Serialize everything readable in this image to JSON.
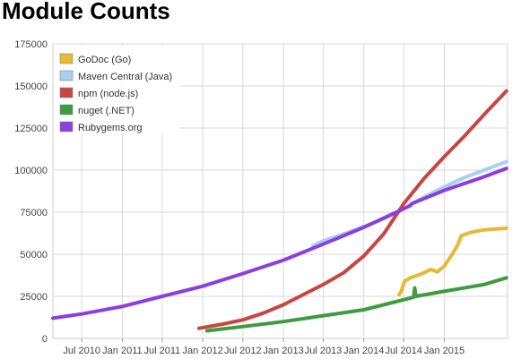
{
  "title": "Module Counts",
  "chart_data": {
    "type": "line",
    "title": "Module Counts",
    "xlabel": "",
    "ylabel": "",
    "x_axis_type": "date",
    "x_range": [
      "2010-02-20",
      "2015-10-15"
    ],
    "ylim": [
      0,
      175000
    ],
    "grid": true,
    "legend_position": "top-left",
    "y_ticks": [
      0,
      25000,
      50000,
      75000,
      100000,
      125000,
      150000,
      175000
    ],
    "y_tick_labels": [
      "0",
      "25000",
      "50000",
      "75000",
      "100000",
      "125000",
      "150000",
      "175000"
    ],
    "x_ticks": [
      "2010-07-01",
      "2011-01-01",
      "2011-07-01",
      "2012-01-01",
      "2012-07-01",
      "2013-01-01",
      "2013-07-01",
      "2014-01-01",
      "2014-07-01",
      "2015-01-01"
    ],
    "x_tick_labels": [
      "Jul 2010",
      "Jan 2011",
      "Jul 2011",
      "Jan 2012",
      "Jul 2012",
      "Jan 2013",
      "Jul 2013",
      "Jan 2014",
      "Jul 2014",
      "Jan 2015"
    ],
    "series": [
      {
        "name": "GoDoc (Go)",
        "color": "#e8b932",
        "points": [
          [
            "2014-06-10",
            26000
          ],
          [
            "2014-06-20",
            28000
          ],
          [
            "2014-07-05",
            34000
          ],
          [
            "2014-08-01",
            36000
          ],
          [
            "2014-09-01",
            37500
          ],
          [
            "2014-10-01",
            39000
          ],
          [
            "2014-11-01",
            41000
          ],
          [
            "2014-12-01",
            39500
          ],
          [
            "2015-01-01",
            43000
          ],
          [
            "2015-02-01",
            49000
          ],
          [
            "2015-03-01",
            55000
          ],
          [
            "2015-03-20",
            61000
          ],
          [
            "2015-05-01",
            63000
          ],
          [
            "2015-07-01",
            64500
          ],
          [
            "2015-10-10",
            65500
          ]
        ]
      },
      {
        "name": "Maven Central (Java)",
        "color": "#a8d0ee",
        "points": [
          [
            "2013-05-15",
            55000
          ],
          [
            "2013-07-01",
            58000
          ],
          [
            "2013-10-01",
            62000
          ],
          [
            "2014-01-01",
            66500
          ],
          [
            "2014-04-01",
            71000
          ],
          [
            "2014-07-01",
            77000
          ],
          [
            "2014-10-01",
            84000
          ],
          [
            "2015-01-01",
            90000
          ],
          [
            "2015-04-01",
            95500
          ],
          [
            "2015-07-01",
            100000
          ],
          [
            "2015-10-10",
            105000
          ]
        ]
      },
      {
        "name": "npm (node.js)",
        "color": "#c84542",
        "points": [
          [
            "2011-12-15",
            6000
          ],
          [
            "2012-04-01",
            8500
          ],
          [
            "2012-07-01",
            11000
          ],
          [
            "2012-10-01",
            15000
          ],
          [
            "2013-01-01",
            20000
          ],
          [
            "2013-04-01",
            26000
          ],
          [
            "2013-07-01",
            32000
          ],
          [
            "2013-10-01",
            39000
          ],
          [
            "2014-01-01",
            49000
          ],
          [
            "2014-04-01",
            62000
          ],
          [
            "2014-07-01",
            80000
          ],
          [
            "2014-10-01",
            95000
          ],
          [
            "2015-01-01",
            108000
          ],
          [
            "2015-04-01",
            120000
          ],
          [
            "2015-07-01",
            133000
          ],
          [
            "2015-10-10",
            147000
          ]
        ]
      },
      {
        "name": "nuget (.NET)",
        "color": "#3f9b3f",
        "points": [
          [
            "2012-01-20",
            4500
          ],
          [
            "2012-07-01",
            7000
          ],
          [
            "2013-01-01",
            10000
          ],
          [
            "2013-07-01",
            13500
          ],
          [
            "2014-01-01",
            17000
          ],
          [
            "2014-07-01",
            23000
          ],
          [
            "2014-08-15",
            24500
          ],
          [
            "2014-08-20",
            30000
          ],
          [
            "2014-08-25",
            25000
          ],
          [
            "2015-01-01",
            28000
          ],
          [
            "2015-07-01",
            32000
          ],
          [
            "2015-10-10",
            36000
          ]
        ]
      },
      {
        "name": "Rubygems.org",
        "color": "#8a3fe0",
        "points": [
          [
            "2010-02-20",
            12000
          ],
          [
            "2010-07-01",
            14500
          ],
          [
            "2011-01-01",
            19000
          ],
          [
            "2011-07-01",
            25000
          ],
          [
            "2012-01-01",
            31000
          ],
          [
            "2012-07-01",
            38500
          ],
          [
            "2013-01-01",
            46500
          ],
          [
            "2013-07-01",
            56000
          ],
          [
            "2014-01-01",
            66000
          ],
          [
            "2014-07-01",
            77000
          ],
          [
            "2014-08-01",
            79000
          ],
          [
            "2014-08-05",
            80000
          ],
          [
            "2015-01-01",
            88000
          ],
          [
            "2015-07-01",
            96000
          ],
          [
            "2015-10-10",
            101000
          ]
        ]
      }
    ]
  }
}
